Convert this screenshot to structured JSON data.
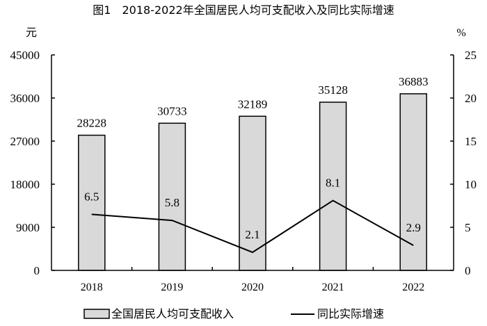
{
  "chart_data": {
    "type": "bar+line",
    "title": "图1　2018-2022年全国居民人均可支配收入及同比实际增速",
    "categories": [
      "2018",
      "2019",
      "2020",
      "2021",
      "2022"
    ],
    "series": [
      {
        "name": "全国居民人均可支配收入",
        "type": "bar",
        "axis": "left",
        "values": [
          28228,
          30733,
          32189,
          35128,
          36883
        ],
        "labels": [
          "28228",
          "30733",
          "32189",
          "35128",
          "36883"
        ],
        "color": "#d9d9d9"
      },
      {
        "name": "同比实际增速",
        "type": "line",
        "axis": "right",
        "values": [
          6.5,
          5.8,
          2.1,
          8.1,
          2.9
        ],
        "labels": [
          "6.5",
          "5.8",
          "2.1",
          "8.1",
          "2.9"
        ],
        "color": "#000000"
      }
    ],
    "ylabel": "元",
    "y2label": "%",
    "ylim": [
      0,
      45000
    ],
    "y2lim": [
      0,
      25
    ],
    "yticks": [
      "0",
      "9000",
      "18000",
      "27000",
      "36000",
      "45000"
    ],
    "y2ticks": [
      "0",
      "5",
      "10",
      "15",
      "20",
      "25"
    ],
    "grid": false,
    "legend": "bottom"
  }
}
